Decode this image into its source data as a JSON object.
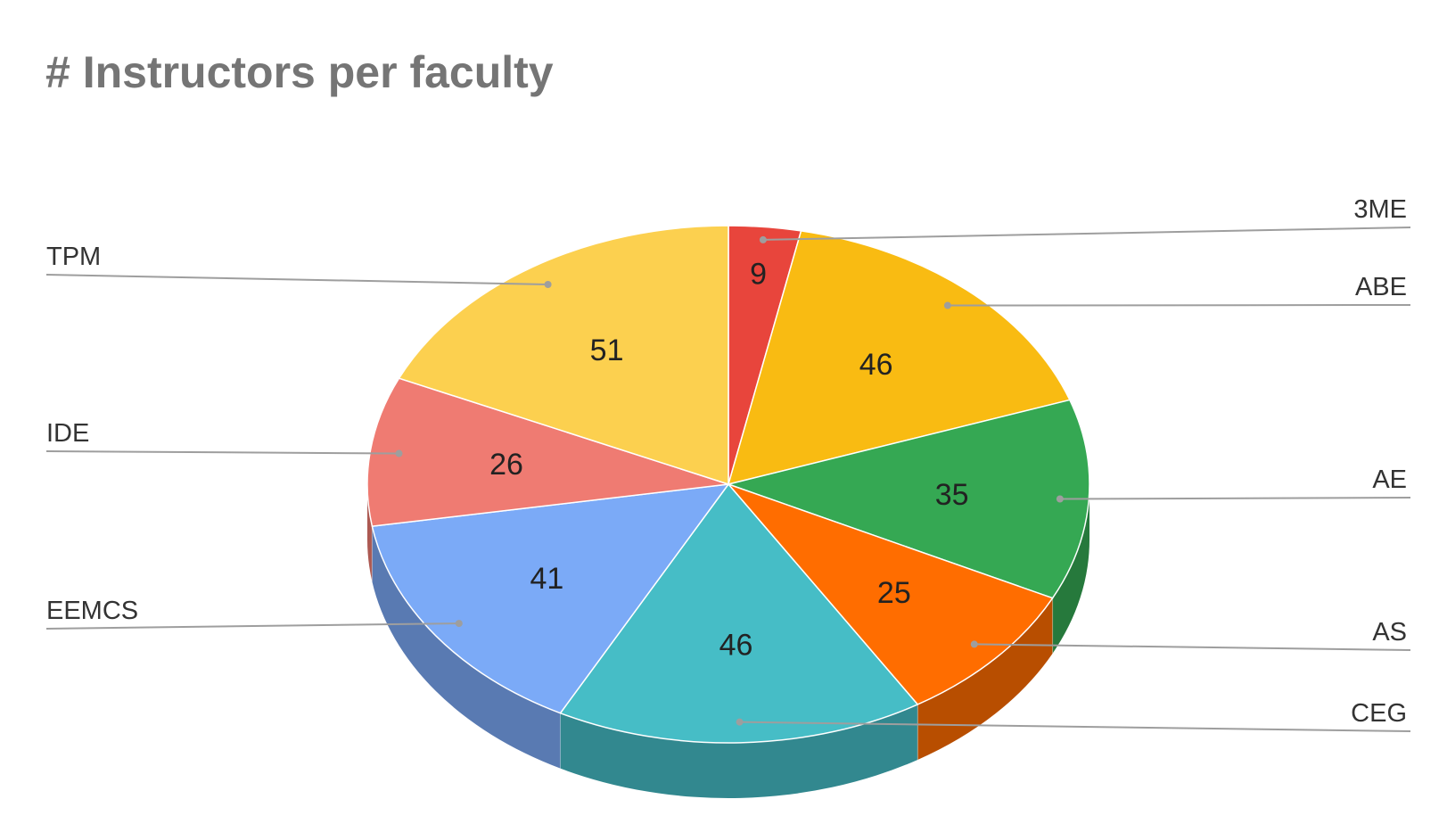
{
  "chart_data": {
    "type": "pie",
    "title": "# Instructors per faculty",
    "slices": [
      {
        "label": "3ME",
        "value": 9,
        "color": "#E8453C"
      },
      {
        "label": "ABE",
        "value": 46,
        "color": "#F9BB12"
      },
      {
        "label": "AE",
        "value": 35,
        "color": "#35A853"
      },
      {
        "label": "AS",
        "value": 25,
        "color": "#FF6D00"
      },
      {
        "label": "CEG",
        "value": 46,
        "color": "#46BDC6"
      },
      {
        "label": "EEMCS",
        "value": 41,
        "color": "#7BAAF7"
      },
      {
        "label": "IDE",
        "value": 26,
        "color": "#EF7B72"
      },
      {
        "label": "TPM",
        "value": 51,
        "color": "#FCD04F"
      }
    ],
    "start_angle": "12 o'clock",
    "direction": "clockwise",
    "style": "3d",
    "legend": "labeled leader lines on left and right"
  }
}
